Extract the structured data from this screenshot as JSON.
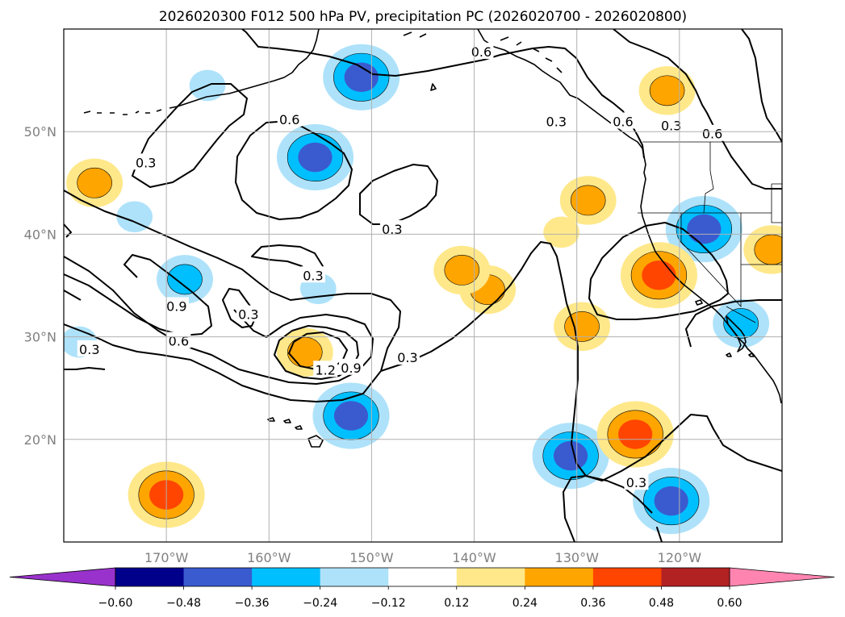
{
  "colors": {
    "neg4": "#9932cc",
    "neg3": "#00008b",
    "neg2": "#3a5bcf",
    "neg1": "#00bfff",
    "neg0": "#aee2fa",
    "zero": "#ffffff",
    "pos0": "#ffe88a",
    "pos1": "#ffa500",
    "pos2": "#ff4500",
    "pos3": "#b22222",
    "pos4": "#ff85b0"
  },
  "chart_data": {
    "type": "contour_map",
    "title": "2026020300 F012 500 hPa PV, precipitation PC (2026020700 - 2026020800)",
    "projection": "plate_carree",
    "lon_range": [
      -180,
      -110
    ],
    "lat_range": [
      10,
      60
    ],
    "lon_ticks": [
      -170,
      -160,
      -150,
      -140,
      -130,
      -120
    ],
    "lat_ticks": [
      20,
      30,
      40,
      50
    ],
    "xtick_labels": [
      "170°W",
      "160°W",
      "150°W",
      "140°W",
      "130°W",
      "120°W"
    ],
    "ytick_labels": [
      "20°N",
      "30°N",
      "40°N",
      "50°N"
    ],
    "contour_field": "500 hPa PV",
    "contour_labels": [
      {
        "text": "0.6",
        "lon": -139.3,
        "lat": 57.8
      },
      {
        "text": "0.6",
        "lon": -158.0,
        "lat": 51.2
      },
      {
        "text": "0.3",
        "lon": -172.0,
        "lat": 47.0
      },
      {
        "text": "0.3",
        "lon": -132.0,
        "lat": 51.0
      },
      {
        "text": "0.6",
        "lon": -125.5,
        "lat": 51.0
      },
      {
        "text": "0.3",
        "lon": -120.8,
        "lat": 50.6
      },
      {
        "text": "0.6",
        "lon": -116.8,
        "lat": 49.8
      },
      {
        "text": "0.3",
        "lon": -148.0,
        "lat": 40.5
      },
      {
        "text": "0.3",
        "lon": -155.7,
        "lat": 36.0
      },
      {
        "text": "0.9",
        "lon": -169.0,
        "lat": 33.0
      },
      {
        "text": "0.3",
        "lon": -162.0,
        "lat": 32.2
      },
      {
        "text": "0.6",
        "lon": -168.8,
        "lat": 29.6
      },
      {
        "text": "0.3",
        "lon": -177.5,
        "lat": 28.8
      },
      {
        "text": "1.2",
        "lon": -154.5,
        "lat": 26.8
      },
      {
        "text": "0.9",
        "lon": -152.0,
        "lat": 27.0
      },
      {
        "text": "0.3",
        "lon": -146.5,
        "lat": 28.0
      },
      {
        "text": "0.3",
        "lon": -124.2,
        "lat": 15.8
      }
    ],
    "fill_field": "precipitation PC",
    "precip_features": [
      {
        "sign": "neg",
        "lon": -151.0,
        "lat": 55.3,
        "peak_level": 2
      },
      {
        "sign": "neg",
        "lon": -155.5,
        "lat": 47.5,
        "peak_level": 2
      },
      {
        "sign": "neg",
        "lon": -166.0,
        "lat": 54.5,
        "peak_level": 0
      },
      {
        "sign": "neg",
        "lon": -168.2,
        "lat": 35.6,
        "peak_level": 1
      },
      {
        "sign": "neg",
        "lon": -155.2,
        "lat": 34.7,
        "peak_level": 0
      },
      {
        "sign": "neg",
        "lon": -152.0,
        "lat": 22.3,
        "peak_level": 2
      },
      {
        "sign": "neg",
        "lon": -130.6,
        "lat": 18.4,
        "peak_level": 2
      },
      {
        "sign": "neg",
        "lon": -120.8,
        "lat": 14.0,
        "peak_level": 2
      },
      {
        "sign": "neg",
        "lon": -117.6,
        "lat": 40.5,
        "peak_level": 2
      },
      {
        "sign": "neg",
        "lon": -114.0,
        "lat": 31.3,
        "peak_level": 1
      },
      {
        "sign": "neg",
        "lon": -178.5,
        "lat": 29.5,
        "peak_level": 0
      },
      {
        "sign": "neg",
        "lon": -173.1,
        "lat": 41.7,
        "peak_level": 0
      },
      {
        "sign": "pos",
        "lon": -170.0,
        "lat": 14.6,
        "peak_level": 2
      },
      {
        "sign": "pos",
        "lon": -156.5,
        "lat": 28.5,
        "peak_level": 1
      },
      {
        "sign": "pos",
        "lon": -124.3,
        "lat": 20.5,
        "peak_level": 2
      },
      {
        "sign": "pos",
        "lon": -122.0,
        "lat": 36.0,
        "peak_level": 2
      },
      {
        "sign": "pos",
        "lon": -128.9,
        "lat": 43.3,
        "peak_level": 1
      },
      {
        "sign": "pos",
        "lon": -121.2,
        "lat": 54.0,
        "peak_level": 1
      },
      {
        "sign": "pos",
        "lon": -111.0,
        "lat": 38.5,
        "peak_level": 1
      },
      {
        "sign": "pos",
        "lon": -138.7,
        "lat": 34.6,
        "peak_level": 1
      },
      {
        "sign": "pos",
        "lon": -141.2,
        "lat": 36.5,
        "peak_level": 1
      },
      {
        "sign": "pos",
        "lon": -129.5,
        "lat": 31.0,
        "peak_level": 1
      },
      {
        "sign": "pos",
        "lon": -131.5,
        "lat": 40.2,
        "peak_level": 0
      },
      {
        "sign": "pos",
        "lon": -177.0,
        "lat": 45.0,
        "peak_level": 1
      }
    ],
    "colorbar": {
      "levels": [
        -0.6,
        -0.48,
        -0.36,
        -0.24,
        -0.12,
        0.12,
        0.24,
        0.36,
        0.48,
        0.6
      ],
      "tick_labels": [
        "−0.60",
        "−0.48",
        "−0.36",
        "−0.24",
        "−0.12",
        "0.12",
        "0.24",
        "0.36",
        "0.48",
        "0.60"
      ],
      "extend": "both",
      "orientation": "horizontal",
      "location": "bottom"
    }
  }
}
